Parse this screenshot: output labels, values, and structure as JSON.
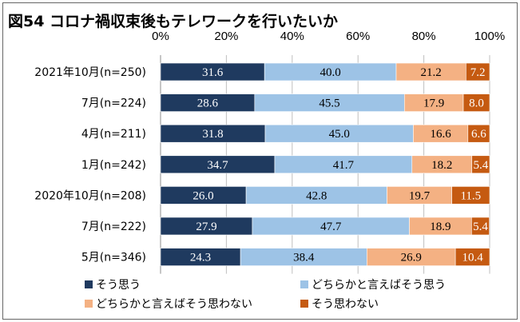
{
  "chart_data": {
    "type": "bar",
    "orientation": "horizontal",
    "stacked": true,
    "title": "図54 コロナ禍収束後もテレワークを行いたいか",
    "categories": [
      "2021年10月(n=250)",
      "7月(n=224)",
      "4月(n=211)",
      "1月(n=242)",
      "2020年10月(n=208)",
      "7月(n=222)",
      "5月(n=346)"
    ],
    "xlim": [
      0,
      100
    ],
    "xticks": [
      "0%",
      "20%",
      "40%",
      "60%",
      "80%",
      "100%"
    ],
    "grid": true,
    "legend_position": "bottom",
    "series": [
      {
        "name": "そう思う",
        "color": "#1f3a5f",
        "label_color": "#ffffff",
        "values": [
          31.6,
          28.6,
          31.8,
          34.7,
          26.0,
          27.9,
          24.3
        ],
        "labels": [
          "31.6",
          "28.6",
          "31.8",
          "34.7",
          "26.0",
          "27.9",
          "24.3"
        ]
      },
      {
        "name": "どちらかと言えばそう思う",
        "color": "#9dc3e6",
        "label_color": "#000000",
        "values": [
          40.0,
          45.5,
          45.0,
          41.7,
          42.8,
          47.7,
          38.4
        ],
        "labels": [
          "40.0",
          "45.5",
          "45.0",
          "41.7",
          "42.8",
          "47.7",
          "38.4"
        ]
      },
      {
        "name": "どちらかと言えばそう思わない",
        "color": "#f4b183",
        "label_color": "#000000",
        "values": [
          21.2,
          17.9,
          16.6,
          18.2,
          19.7,
          18.9,
          26.9
        ],
        "labels": [
          "21.2",
          "17.9",
          "16.6",
          "18.2",
          "19.7",
          "18.9",
          "26.9"
        ]
      },
      {
        "name": "そう思わない",
        "color": "#c55a11",
        "label_color": "#ffffff",
        "values": [
          7.2,
          8.0,
          6.6,
          5.4,
          11.5,
          5.4,
          10.4
        ],
        "labels": [
          "7.2",
          "8.0",
          "6.6",
          "5.4",
          "11.5",
          "5.4",
          "10.4"
        ]
      }
    ]
  }
}
